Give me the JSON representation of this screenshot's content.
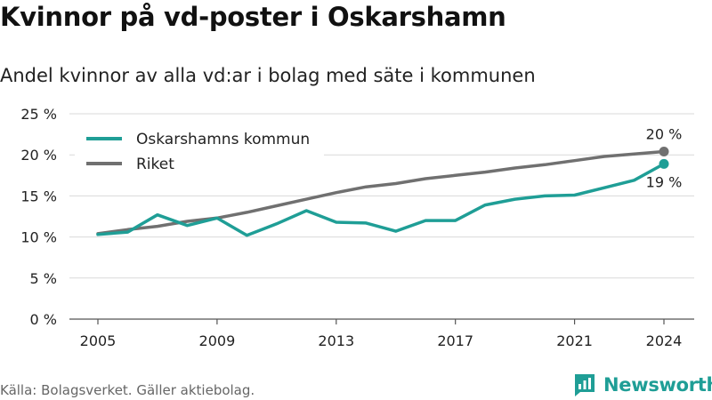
{
  "header": {
    "title": "Kvinnor på vd-poster i Oskarshamn",
    "subtitle": "Andel kvinnor av alla vd:ar i bolag med säte i kommunen"
  },
  "footer": {
    "source": "Källa: Bolagsverket. Gäller aktiebolag.",
    "brand": "Newsworthy"
  },
  "colors": {
    "oskarshamn": "#1f9e96",
    "riket": "#707070",
    "grid": "#d9d9d9",
    "brand": "#1f9e96"
  },
  "chart_data": {
    "type": "line",
    "ylim": [
      0,
      25
    ],
    "xlim": [
      2005,
      2024
    ],
    "yticks": [
      0,
      5,
      10,
      15,
      20,
      25
    ],
    "ytick_labels": [
      "0 %",
      "5 %",
      "10 %",
      "15 %",
      "20 %",
      "25 %"
    ],
    "xticks": [
      2005,
      2009,
      2013,
      2017,
      2021,
      2024
    ],
    "xtick_labels": [
      "2005",
      "2009",
      "2013",
      "2017",
      "2021",
      "2024"
    ],
    "grid": true,
    "legend_position": "top-left",
    "x": [
      2005,
      2006,
      2007,
      2008,
      2009,
      2010,
      2011,
      2012,
      2013,
      2014,
      2015,
      2016,
      2017,
      2018,
      2019,
      2020,
      2021,
      2022,
      2023,
      2024
    ],
    "series": [
      {
        "name": "Oskarshamns kommun",
        "values": [
          10.3,
          10.6,
          12.7,
          11.4,
          12.3,
          10.2,
          11.6,
          13.2,
          11.8,
          11.7,
          10.7,
          12.0,
          12.0,
          13.9,
          14.6,
          15.0,
          15.1,
          16.0,
          16.9,
          18.9
        ],
        "end_label": "19 %"
      },
      {
        "name": "Riket",
        "values": [
          10.4,
          10.9,
          11.3,
          11.9,
          12.3,
          13.0,
          13.8,
          14.6,
          15.4,
          16.1,
          16.5,
          17.1,
          17.5,
          17.9,
          18.4,
          18.8,
          19.3,
          19.8,
          20.1,
          20.4
        ],
        "end_label": "20 %"
      }
    ]
  }
}
